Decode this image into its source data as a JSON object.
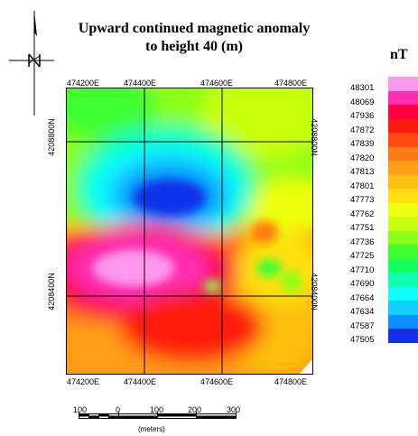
{
  "title_line1": "Upward continued magnetic anomaly",
  "title_line2": "to height 40 (m)",
  "x_ticks": [
    "474200E",
    "474400E",
    "474600E",
    "474800E"
  ],
  "y_ticks": [
    "4208800N",
    "4208400N"
  ],
  "legend": {
    "unit": "nT",
    "entries": [
      {
        "label": "48301",
        "color": "#ff99ee"
      },
      {
        "label": "48069",
        "color": "#ff2eb0"
      },
      {
        "label": "47936",
        "color": "#ff0040"
      },
      {
        "label": "47872",
        "color": "#ff1a10"
      },
      {
        "label": "47839",
        "color": "#ff4a10"
      },
      {
        "label": "47820",
        "color": "#ff7a10"
      },
      {
        "label": "47813",
        "color": "#ff9e18"
      },
      {
        "label": "47801",
        "color": "#ffbe10"
      },
      {
        "label": "47773",
        "color": "#ffe010"
      },
      {
        "label": "47762",
        "color": "#eeff10"
      },
      {
        "label": "47751",
        "color": "#c8ff10"
      },
      {
        "label": "47736",
        "color": "#8cff18"
      },
      {
        "label": "47725",
        "color": "#40ff30"
      },
      {
        "label": "47710",
        "color": "#18ff60"
      },
      {
        "label": "47690",
        "color": "#10ffb0"
      },
      {
        "label": "47664",
        "color": "#10ffff"
      },
      {
        "label": "47634",
        "color": "#10d0ff"
      },
      {
        "label": "47587",
        "color": "#1090ff"
      },
      {
        "label": "47505",
        "color": "#1030e8"
      }
    ]
  },
  "scale_bar": {
    "labels": [
      "100",
      "0",
      "100",
      "200",
      "300"
    ],
    "unit": "(meters)"
  }
}
